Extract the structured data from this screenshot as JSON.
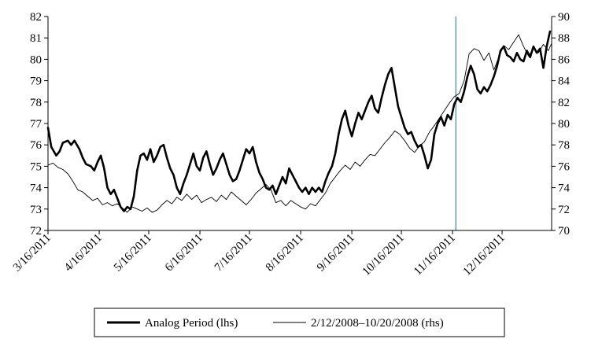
{
  "chart_data": {
    "type": "line",
    "title": "",
    "xlabel": "",
    "ylabel_left": "",
    "ylabel_right": "",
    "left_axis": {
      "min": 72,
      "max": 82,
      "ticks": [
        "72",
        "73",
        "74",
        "75",
        "76",
        "77",
        "78",
        "79",
        "80",
        "81",
        "82"
      ]
    },
    "right_axis": {
      "min": 70,
      "max": 90,
      "ticks": [
        "70",
        "72",
        "74",
        "76",
        "78",
        "80",
        "82",
        "84",
        "86",
        "88",
        "90"
      ]
    },
    "x_tick_labels": [
      "3/16/2011",
      "4/16/2011",
      "5/16/2011",
      "6/16/2011",
      "7/16/2011",
      "8/16/2011",
      "9/16/2011",
      "10/16/2011",
      "11/16/2011",
      "12/16/2011"
    ],
    "x_domain": [
      "3/16/2011",
      "1/15/2012"
    ],
    "vertical_marker": {
      "date": "11/18/2011",
      "color": "#4a8fb5"
    },
    "grid": false,
    "legend_position": "bottom-center",
    "series": [
      {
        "name": "Analog Period (lhs)",
        "axis": "left",
        "color": "#000000",
        "weight": "thick",
        "points": [
          [
            "3/16/2011",
            76.8
          ],
          [
            "3/18/2011",
            75.9
          ],
          [
            "3/21/2011",
            75.5
          ],
          [
            "3/23/2011",
            75.7
          ],
          [
            "3/25/2011",
            76.1
          ],
          [
            "3/28/2011",
            76.2
          ],
          [
            "3/30/2011",
            76.0
          ],
          [
            "4/1/2011",
            76.2
          ],
          [
            "4/4/2011",
            75.8
          ],
          [
            "4/6/2011",
            75.4
          ],
          [
            "4/8/2011",
            75.1
          ],
          [
            "4/11/2011",
            75.0
          ],
          [
            "4/13/2011",
            74.8
          ],
          [
            "4/15/2011",
            75.2
          ],
          [
            "4/17/2011",
            75.5
          ],
          [
            "4/19/2011",
            74.9
          ],
          [
            "4/21/2011",
            74.0
          ],
          [
            "4/23/2011",
            73.7
          ],
          [
            "4/25/2011",
            73.9
          ],
          [
            "4/27/2011",
            73.5
          ],
          [
            "4/29/2011",
            73.1
          ],
          [
            "5/1/2011",
            72.9
          ],
          [
            "5/3/2011",
            73.1
          ],
          [
            "5/5/2011",
            73.0
          ],
          [
            "5/7/2011",
            73.6
          ],
          [
            "5/9/2011",
            74.8
          ],
          [
            "5/11/2011",
            75.5
          ],
          [
            "5/13/2011",
            75.6
          ],
          [
            "5/15/2011",
            75.3
          ],
          [
            "5/17/2011",
            75.8
          ],
          [
            "5/19/2011",
            75.2
          ],
          [
            "5/21/2011",
            75.5
          ],
          [
            "5/23/2011",
            75.9
          ],
          [
            "5/25/2011",
            76.0
          ],
          [
            "5/27/2011",
            75.4
          ],
          [
            "5/29/2011",
            74.9
          ],
          [
            "5/31/2011",
            74.6
          ],
          [
            "6/2/2011",
            74.0
          ],
          [
            "6/4/2011",
            73.7
          ],
          [
            "6/6/2011",
            74.2
          ],
          [
            "6/8/2011",
            74.6
          ],
          [
            "6/10/2011",
            75.1
          ],
          [
            "6/12/2011",
            75.6
          ],
          [
            "6/14/2011",
            75.0
          ],
          [
            "6/16/2011",
            74.8
          ],
          [
            "6/18/2011",
            75.4
          ],
          [
            "6/20/2011",
            75.7
          ],
          [
            "6/22/2011",
            75.1
          ],
          [
            "6/24/2011",
            74.6
          ],
          [
            "6/26/2011",
            74.9
          ],
          [
            "6/28/2011",
            75.3
          ],
          [
            "6/30/2011",
            75.6
          ],
          [
            "7/2/2011",
            75.1
          ],
          [
            "7/4/2011",
            74.6
          ],
          [
            "7/6/2011",
            74.3
          ],
          [
            "7/8/2011",
            74.4
          ],
          [
            "7/10/2011",
            74.8
          ],
          [
            "7/12/2011",
            75.3
          ],
          [
            "7/14/2011",
            75.8
          ],
          [
            "7/16/2011",
            75.6
          ],
          [
            "7/18/2011",
            75.9
          ],
          [
            "7/20/2011",
            75.2
          ],
          [
            "7/22/2011",
            74.7
          ],
          [
            "7/24/2011",
            74.4
          ],
          [
            "7/26/2011",
            74.0
          ],
          [
            "7/28/2011",
            73.9
          ],
          [
            "7/30/2011",
            74.1
          ],
          [
            "8/1/2011",
            73.7
          ],
          [
            "8/3/2011",
            74.1
          ],
          [
            "8/5/2011",
            74.5
          ],
          [
            "8/7/2011",
            74.2
          ],
          [
            "8/9/2011",
            74.9
          ],
          [
            "8/11/2011",
            74.6
          ],
          [
            "8/13/2011",
            74.3
          ],
          [
            "8/15/2011",
            74.0
          ],
          [
            "8/17/2011",
            73.8
          ],
          [
            "8/19/2011",
            74.0
          ],
          [
            "8/21/2011",
            73.7
          ],
          [
            "8/23/2011",
            74.0
          ],
          [
            "8/25/2011",
            73.8
          ],
          [
            "8/27/2011",
            74.0
          ],
          [
            "8/29/2011",
            73.8
          ],
          [
            "8/31/2011",
            74.3
          ],
          [
            "9/2/2011",
            74.7
          ],
          [
            "9/4/2011",
            75.0
          ],
          [
            "9/6/2011",
            75.6
          ],
          [
            "9/8/2011",
            76.5
          ],
          [
            "9/10/2011",
            77.2
          ],
          [
            "9/12/2011",
            77.6
          ],
          [
            "9/14/2011",
            76.9
          ],
          [
            "9/16/2011",
            76.4
          ],
          [
            "9/18/2011",
            77.0
          ],
          [
            "9/20/2011",
            77.5
          ],
          [
            "9/22/2011",
            77.2
          ],
          [
            "9/24/2011",
            77.6
          ],
          [
            "9/26/2011",
            78.0
          ],
          [
            "9/28/2011",
            78.3
          ],
          [
            "9/30/2011",
            77.7
          ],
          [
            "10/2/2011",
            77.5
          ],
          [
            "10/4/2011",
            78.2
          ],
          [
            "10/6/2011",
            78.8
          ],
          [
            "10/8/2011",
            79.3
          ],
          [
            "10/10/2011",
            79.6
          ],
          [
            "10/12/2011",
            78.7
          ],
          [
            "10/14/2011",
            77.8
          ],
          [
            "10/16/2011",
            77.3
          ],
          [
            "10/18/2011",
            76.8
          ],
          [
            "10/20/2011",
            76.5
          ],
          [
            "10/22/2011",
            76.6
          ],
          [
            "10/24/2011",
            76.2
          ],
          [
            "10/26/2011",
            75.9
          ],
          [
            "10/28/2011",
            76.0
          ],
          [
            "10/30/2011",
            75.5
          ],
          [
            "11/1/2011",
            74.9
          ],
          [
            "11/3/2011",
            75.3
          ],
          [
            "11/5/2011",
            76.5
          ],
          [
            "11/7/2011",
            77.0
          ],
          [
            "11/9/2011",
            77.3
          ],
          [
            "11/11/2011",
            76.9
          ],
          [
            "11/13/2011",
            77.4
          ],
          [
            "11/15/2011",
            77.2
          ],
          [
            "11/17/2011",
            77.9
          ],
          [
            "11/19/2011",
            78.2
          ],
          [
            "11/21/2011",
            78.0
          ],
          [
            "11/23/2011",
            78.5
          ],
          [
            "11/25/2011",
            79.2
          ],
          [
            "11/27/2011",
            79.7
          ],
          [
            "11/29/2011",
            79.3
          ],
          [
            "12/1/2011",
            78.6
          ],
          [
            "12/3/2011",
            78.4
          ],
          [
            "12/5/2011",
            78.7
          ],
          [
            "12/7/2011",
            78.5
          ],
          [
            "12/9/2011",
            78.8
          ],
          [
            "12/11/2011",
            79.2
          ],
          [
            "12/13/2011",
            79.7
          ],
          [
            "12/15/2011",
            80.4
          ],
          [
            "12/17/2011",
            80.6
          ],
          [
            "12/19/2011",
            80.2
          ],
          [
            "12/21/2011",
            80.1
          ],
          [
            "12/23/2011",
            79.9
          ],
          [
            "12/25/2011",
            80.3
          ],
          [
            "12/27/2011",
            80.0
          ],
          [
            "12/29/2011",
            79.9
          ],
          [
            "12/31/2011",
            80.4
          ],
          [
            "1/2/2012",
            80.1
          ],
          [
            "1/4/2012",
            80.6
          ],
          [
            "1/6/2012",
            80.3
          ],
          [
            "1/8/2012",
            80.5
          ],
          [
            "1/10/2012",
            79.6
          ],
          [
            "1/12/2012",
            80.6
          ],
          [
            "1/14/2012",
            81.3
          ]
        ]
      },
      {
        "name": "2/12/2008–10/20/2008 (rhs)",
        "axis": "right",
        "color": "#000000",
        "weight": "thin",
        "points": [
          [
            "3/16/2011",
            76.1
          ],
          [
            "3/19/2011",
            76.3
          ],
          [
            "3/22/2011",
            75.9
          ],
          [
            "3/25/2011",
            75.7
          ],
          [
            "3/28/2011",
            75.3
          ],
          [
            "3/31/2011",
            74.6
          ],
          [
            "4/3/2011",
            73.8
          ],
          [
            "4/6/2011",
            73.6
          ],
          [
            "4/9/2011",
            73.2
          ],
          [
            "4/12/2011",
            72.8
          ],
          [
            "4/15/2011",
            73.0
          ],
          [
            "4/18/2011",
            72.4
          ],
          [
            "4/21/2011",
            72.6
          ],
          [
            "4/24/2011",
            72.3
          ],
          [
            "4/27/2011",
            72.5
          ],
          [
            "4/30/2011",
            72.1
          ],
          [
            "5/3/2011",
            71.7
          ],
          [
            "5/6/2011",
            72.2
          ],
          [
            "5/9/2011",
            72.0
          ],
          [
            "5/12/2011",
            71.8
          ],
          [
            "5/15/2011",
            72.1
          ],
          [
            "5/18/2011",
            71.7
          ],
          [
            "5/21/2011",
            71.9
          ],
          [
            "5/24/2011",
            72.4
          ],
          [
            "5/27/2011",
            72.8
          ],
          [
            "5/30/2011",
            72.5
          ],
          [
            "6/2/2011",
            73.1
          ],
          [
            "6/5/2011",
            72.8
          ],
          [
            "6/8/2011",
            73.4
          ],
          [
            "6/11/2011",
            72.9
          ],
          [
            "6/14/2011",
            73.3
          ],
          [
            "6/17/2011",
            72.6
          ],
          [
            "6/20/2011",
            72.9
          ],
          [
            "6/23/2011",
            73.1
          ],
          [
            "6/26/2011",
            72.7
          ],
          [
            "6/29/2011",
            73.3
          ],
          [
            "7/2/2011",
            72.9
          ],
          [
            "7/5/2011",
            73.6
          ],
          [
            "7/8/2011",
            73.2
          ],
          [
            "7/11/2011",
            72.8
          ],
          [
            "7/14/2011",
            72.4
          ],
          [
            "7/17/2011",
            72.9
          ],
          [
            "7/20/2011",
            73.5
          ],
          [
            "7/23/2011",
            73.9
          ],
          [
            "7/26/2011",
            74.3
          ],
          [
            "7/29/2011",
            73.8
          ],
          [
            "8/1/2011",
            72.6
          ],
          [
            "8/4/2011",
            72.8
          ],
          [
            "8/7/2011",
            72.3
          ],
          [
            "8/10/2011",
            72.8
          ],
          [
            "8/13/2011",
            72.5
          ],
          [
            "8/16/2011",
            72.2
          ],
          [
            "8/19/2011",
            72.0
          ],
          [
            "8/22/2011",
            72.5
          ],
          [
            "8/25/2011",
            72.3
          ],
          [
            "8/28/2011",
            72.9
          ],
          [
            "8/31/2011",
            73.5
          ],
          [
            "9/3/2011",
            74.4
          ],
          [
            "9/6/2011",
            75.0
          ],
          [
            "9/9/2011",
            75.6
          ],
          [
            "9/12/2011",
            76.1
          ],
          [
            "9/15/2011",
            75.7
          ],
          [
            "9/18/2011",
            76.4
          ],
          [
            "9/21/2011",
            76.0
          ],
          [
            "9/24/2011",
            76.6
          ],
          [
            "9/27/2011",
            77.1
          ],
          [
            "9/30/2011",
            77.0
          ],
          [
            "10/3/2011",
            77.6
          ],
          [
            "10/6/2011",
            78.2
          ],
          [
            "10/9/2011",
            78.7
          ],
          [
            "10/12/2011",
            79.3
          ],
          [
            "10/15/2011",
            79.0
          ],
          [
            "10/18/2011",
            78.4
          ],
          [
            "10/21/2011",
            77.7
          ],
          [
            "10/24/2011",
            77.3
          ],
          [
            "10/27/2011",
            77.9
          ],
          [
            "10/30/2011",
            78.3
          ],
          [
            "11/2/2011",
            79.2
          ],
          [
            "11/5/2011",
            79.8
          ],
          [
            "11/8/2011",
            80.5
          ],
          [
            "11/11/2011",
            81.2
          ],
          [
            "11/14/2011",
            81.9
          ],
          [
            "11/17/2011",
            82.5
          ],
          [
            "11/20/2011",
            82.8
          ],
          [
            "11/23/2011",
            84.0
          ],
          [
            "11/26/2011",
            86.5
          ],
          [
            "11/29/2011",
            87.0
          ],
          [
            "12/2/2011",
            86.8
          ],
          [
            "12/5/2011",
            85.9
          ],
          [
            "12/8/2011",
            86.6
          ],
          [
            "12/11/2011",
            85.0
          ],
          [
            "12/14/2011",
            86.2
          ],
          [
            "12/17/2011",
            87.3
          ],
          [
            "12/20/2011",
            86.9
          ],
          [
            "12/23/2011",
            87.6
          ],
          [
            "12/26/2011",
            88.3
          ],
          [
            "12/29/2011",
            87.2
          ],
          [
            "1/1/2012",
            86.3
          ],
          [
            "1/4/2012",
            87.0
          ],
          [
            "1/7/2012",
            86.6
          ],
          [
            "1/10/2012",
            87.4
          ],
          [
            "1/13/2012",
            86.8
          ],
          [
            "1/15/2012",
            87.5
          ]
        ]
      }
    ]
  }
}
